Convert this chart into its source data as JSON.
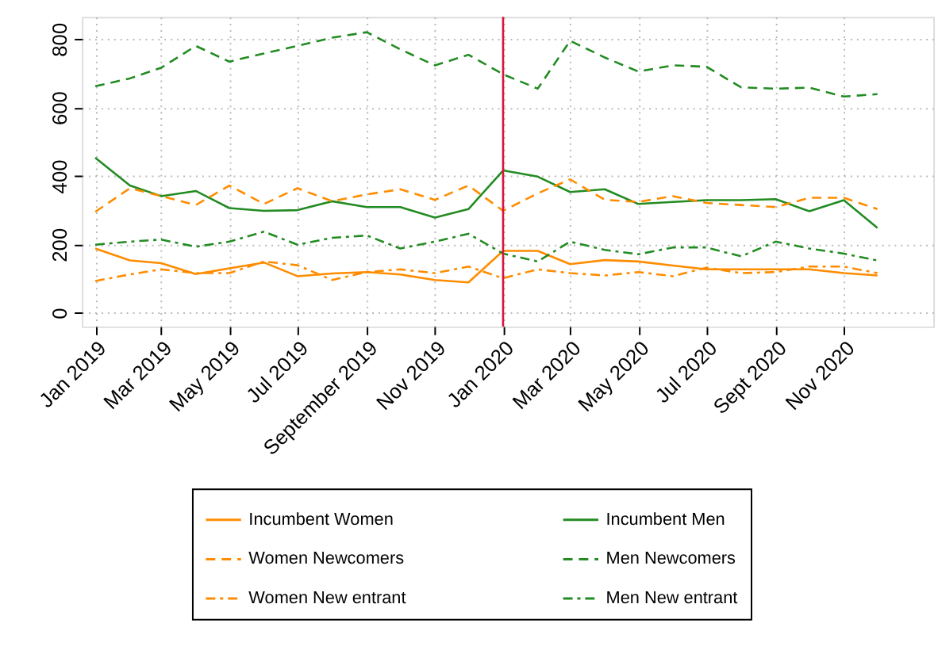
{
  "chart_data": {
    "type": "line",
    "x": [
      "2019-01",
      "2019-02",
      "2019-03",
      "2019-04",
      "2019-05",
      "2019-06",
      "2019-07",
      "2019-08",
      "2019-09",
      "2019-10",
      "2019-11",
      "2019-12",
      "2020-01",
      "2020-02",
      "2020-03",
      "2020-04",
      "2020-05",
      "2020-06",
      "2020-07",
      "2020-08",
      "2020-09",
      "2020-10",
      "2020-11",
      "2020-12"
    ],
    "series": [
      {
        "name": "Incumbent Women",
        "color": "#ff8c00",
        "line_style": "solid",
        "values": [
          188,
          153,
          145,
          113,
          130,
          147,
          107,
          115,
          119,
          112,
          96,
          89,
          181,
          181,
          142,
          154,
          150,
          138,
          127,
          127,
          127,
          127,
          116,
          109
        ]
      },
      {
        "name": "Incumbent Men",
        "color": "#228b22",
        "line_style": "solid",
        "values": [
          453,
          372,
          341,
          356,
          306,
          298,
          300,
          326,
          309,
          309,
          278,
          303,
          416,
          398,
          353,
          361,
          318,
          324,
          329,
          329,
          332,
          297,
          329,
          248
        ]
      },
      {
        "name": "Women Newcomers",
        "color": "#ff8c00",
        "line_style": "dashed",
        "values": [
          295,
          364,
          341,
          315,
          372,
          318,
          364,
          326,
          346,
          361,
          330,
          372,
          298,
          349,
          390,
          330,
          324,
          341,
          321,
          315,
          309,
          336,
          336,
          303
        ]
      },
      {
        "name": "Men Newcomers",
        "color": "#228b22",
        "line_style": "dashed",
        "values": [
          662,
          685,
          716,
          780,
          734,
          758,
          780,
          804,
          820,
          770,
          723,
          754,
          697,
          655,
          795,
          746,
          705,
          723,
          719,
          659,
          655,
          658,
          632,
          639
        ]
      },
      {
        "name": "Women New entrant",
        "color": "#ff8c00",
        "line_style": "dashdot",
        "values": [
          93,
          112,
          127,
          116,
          116,
          150,
          139,
          96,
          119,
          127,
          116,
          135,
          101,
          127,
          116,
          109,
          119,
          107,
          132,
          116,
          119,
          135,
          135,
          116
        ]
      },
      {
        "name": "Men New entrant",
        "color": "#228b22",
        "line_style": "dashdot",
        "values": [
          199,
          208,
          214,
          193,
          208,
          237,
          199,
          219,
          226,
          188,
          208,
          231,
          173,
          150,
          208,
          184,
          171,
          191,
          191,
          165,
          208,
          188,
          173,
          153
        ]
      }
    ],
    "xlim": [
      "2018-12-20",
      "2021-01-20"
    ],
    "xticks": [
      {
        "value": "2019-01",
        "label": "Jan 2019"
      },
      {
        "value": "2019-03",
        "label": "Mar 2019"
      },
      {
        "value": "2019-05",
        "label": "May 2019"
      },
      {
        "value": "2019-07",
        "label": "Jul 2019"
      },
      {
        "value": "2019-09",
        "label": "September 2019"
      },
      {
        "value": "2019-11",
        "label": "Nov 2019"
      },
      {
        "value": "2020-01",
        "label": "Jan 2020"
      },
      {
        "value": "2020-03",
        "label": "Mar 2020"
      },
      {
        "value": "2020-05",
        "label": "May 2020"
      },
      {
        "value": "2020-07",
        "label": "Jul 2020"
      },
      {
        "value": "2020-09",
        "label": "Sept 2020"
      },
      {
        "value": "2020-11",
        "label": "Nov 2020"
      }
    ],
    "ylim": [
      -40,
      865
    ],
    "yticks": [
      0,
      200,
      400,
      600,
      800
    ],
    "ref_lines": [
      {
        "axis": "x",
        "value": "2020-01",
        "color": "#dc143c"
      }
    ],
    "grid": true,
    "legend": "bottom"
  }
}
